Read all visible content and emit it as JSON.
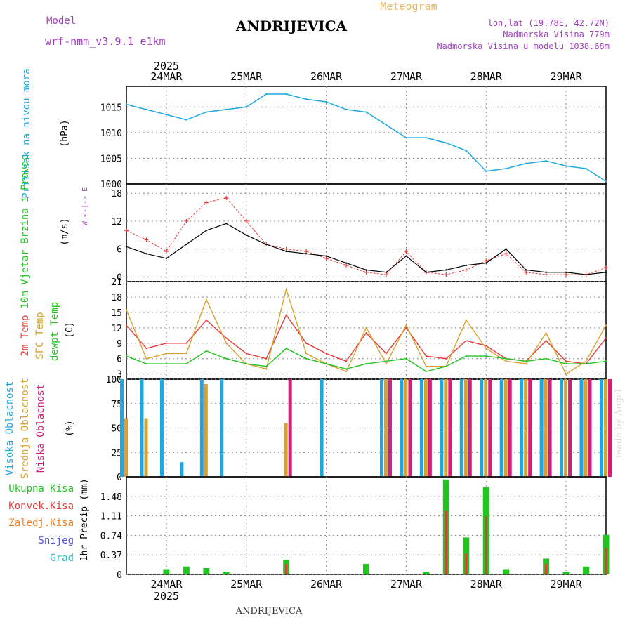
{
  "header": {
    "model_label": "Model",
    "model_name": "wrf-nmm_v3.9.1 e1km",
    "station": "ANDRIJEVICA",
    "title": "Meteogram",
    "lonlat": "lon,lat (19.78E, 42.72N)",
    "elevation": "Nadmorska Visina 779m",
    "model_elevation": "Nadmorska Visina u modelu 1038.68m",
    "year": "2025",
    "footer_station": "ANDRIJEVICA",
    "watermark": "made by Angel"
  },
  "colors": {
    "pressure": "#1fa8e0",
    "wind_speed": "#000000",
    "gust": "#e83a3a",
    "temp2m": "#e83a3a",
    "sfc_temp": "#d9a030",
    "dewpoint": "#22c422",
    "high_cloud": "#1fa8e0",
    "mid_cloud": "#d9a030",
    "low_cloud": "#d0207a",
    "total_precip": "#22c422",
    "convective": "#e83a3a",
    "frozen": "#f07f20",
    "snow": "#5050e0",
    "graupel": "#30c0c0",
    "model_label": "#a040c0"
  },
  "chart_data": [
    {
      "type": "line",
      "name": "pressure",
      "ylabel": "Pritisak na nivou mora",
      "unit": "(hPa)",
      "ylim": [
        1000,
        1019
      ],
      "yticks": [
        1000,
        1005,
        1010,
        1015
      ],
      "x": [
        "23MAR 12Z",
        "23MAR 18Z",
        "24MAR 00Z",
        "24MAR 06Z",
        "24MAR 12Z",
        "24MAR 18Z",
        "25MAR 00Z",
        "25MAR 06Z",
        "25MAR 12Z",
        "25MAR 18Z",
        "26MAR 00Z",
        "26MAR 06Z",
        "26MAR 12Z",
        "26MAR 18Z",
        "27MAR 00Z",
        "27MAR 06Z",
        "27MAR 12Z",
        "27MAR 18Z",
        "28MAR 00Z",
        "28MAR 06Z",
        "28MAR 12Z",
        "28MAR 18Z",
        "29MAR 00Z",
        "29MAR 06Z",
        "29MAR 12Z"
      ],
      "values": [
        1015.5,
        1014.5,
        1013.5,
        1012.5,
        1014,
        1014.5,
        1015,
        1017.5,
        1017.5,
        1016.5,
        1016,
        1014.5,
        1014,
        1011.5,
        1009,
        1009,
        1008,
        1006.5,
        1002.5,
        1003,
        1004,
        1004.5,
        1003.5,
        1003,
        1000.5
      ]
    },
    {
      "type": "line",
      "name": "wind",
      "ylabel": "10m Vjetar Brzina i Pravac",
      "unit": "(m/s)",
      "ylim": [
        -1,
        20
      ],
      "yticks": [
        0,
        6,
        12,
        18
      ],
      "compass": "W <-|-> E",
      "x": [
        "23MAR 12Z",
        "23MAR 18Z",
        "24MAR 00Z",
        "24MAR 06Z",
        "24MAR 12Z",
        "24MAR 18Z",
        "25MAR 00Z",
        "25MAR 06Z",
        "25MAR 12Z",
        "25MAR 18Z",
        "26MAR 00Z",
        "26MAR 06Z",
        "26MAR 12Z",
        "26MAR 18Z",
        "27MAR 00Z",
        "27MAR 06Z",
        "27MAR 12Z",
        "27MAR 18Z",
        "28MAR 00Z",
        "28MAR 06Z",
        "28MAR 12Z",
        "28MAR 18Z",
        "29MAR 00Z",
        "29MAR 06Z",
        "29MAR 12Z"
      ],
      "series": [
        {
          "name": "speed",
          "values": [
            6.5,
            5,
            4,
            7,
            10,
            11.5,
            9,
            7,
            5.5,
            5,
            4.5,
            3,
            1.5,
            1,
            4.5,
            1,
            1.5,
            2.5,
            3,
            6,
            1.5,
            1,
            1,
            0.5,
            1
          ]
        },
        {
          "name": "gust",
          "values": [
            10,
            8,
            5.5,
            12,
            16,
            17,
            12,
            7,
            6,
            5.5,
            4,
            2.5,
            1,
            0.5,
            5.5,
            1,
            0.5,
            1.5,
            3.5,
            5,
            1,
            0.5,
            0.5,
            0.5,
            2
          ]
        }
      ]
    },
    {
      "type": "line",
      "name": "temperature",
      "labels": [
        "2m Temp",
        "SFC Temp",
        "dewpt Temp"
      ],
      "unit": "(C)",
      "ylim": [
        2,
        21
      ],
      "yticks": [
        3,
        6,
        9,
        12,
        15,
        18,
        21
      ],
      "x": [
        "23MAR 12Z",
        "23MAR 18Z",
        "24MAR 00Z",
        "24MAR 06Z",
        "24MAR 12Z",
        "24MAR 18Z",
        "25MAR 00Z",
        "25MAR 06Z",
        "25MAR 12Z",
        "25MAR 18Z",
        "26MAR 00Z",
        "26MAR 06Z",
        "26MAR 12Z",
        "26MAR 18Z",
        "27MAR 00Z",
        "27MAR 06Z",
        "27MAR 12Z",
        "27MAR 18Z",
        "28MAR 00Z",
        "28MAR 06Z",
        "28MAR 12Z",
        "28MAR 18Z",
        "29MAR 00Z",
        "29MAR 06Z",
        "29MAR 12Z"
      ],
      "series": [
        {
          "name": "2m Temp",
          "values": [
            12.5,
            8,
            9,
            9,
            13.5,
            10,
            7,
            6,
            14.5,
            9,
            7,
            5.5,
            11,
            7,
            12,
            6.5,
            6,
            9.5,
            8.5,
            6,
            5.5,
            9.5,
            5.5,
            5,
            10
          ]
        },
        {
          "name": "SFC Temp",
          "values": [
            15.5,
            6,
            7,
            7,
            17.5,
            9,
            5,
            4,
            19.5,
            7,
            5,
            3.5,
            12,
            5,
            12.5,
            4.5,
            4.5,
            13.5,
            8,
            5.5,
            5,
            11,
            3,
            5.5,
            12.5
          ]
        },
        {
          "name": "dewpt Temp",
          "values": [
            6.5,
            5,
            5,
            5,
            7.5,
            6,
            5,
            4.5,
            8,
            6,
            5,
            4,
            5,
            5.5,
            6,
            3.5,
            4.5,
            6.5,
            6.5,
            6,
            5.5,
            6,
            5,
            5,
            5.5
          ]
        }
      ]
    },
    {
      "type": "bar",
      "name": "cloud",
      "labels": [
        "Visoka Oblacnost",
        "Srednja Oblacnost",
        "Niska Oblacnost"
      ],
      "unit": "(%)",
      "ylim": [
        0,
        100
      ],
      "yticks": [
        0,
        25,
        50,
        75,
        100
      ],
      "x": [
        "23MAR 12Z",
        "23MAR 18Z",
        "24MAR 00Z",
        "24MAR 06Z",
        "24MAR 12Z",
        "24MAR 18Z",
        "25MAR 00Z",
        "25MAR 06Z",
        "25MAR 12Z",
        "25MAR 18Z",
        "26MAR 00Z",
        "26MAR 06Z",
        "26MAR 12Z",
        "26MAR 18Z",
        "27MAR 00Z",
        "27MAR 06Z",
        "27MAR 12Z",
        "27MAR 18Z",
        "28MAR 00Z",
        "28MAR 06Z",
        "28MAR 12Z",
        "28MAR 18Z",
        "29MAR 00Z",
        "29MAR 06Z",
        "29MAR 12Z"
      ],
      "series": [
        {
          "name": "Visoka Oblacnost",
          "values": [
            100,
            100,
            100,
            15,
            100,
            100,
            0,
            0,
            0,
            0,
            100,
            0,
            0,
            100,
            100,
            100,
            100,
            100,
            100,
            100,
            100,
            100,
            100,
            100,
            100
          ]
        },
        {
          "name": "Srednja Oblacnost",
          "values": [
            60,
            60,
            0,
            0,
            95,
            0,
            0,
            0,
            55,
            0,
            0,
            0,
            0,
            100,
            100,
            100,
            100,
            100,
            100,
            100,
            100,
            100,
            100,
            100,
            100
          ]
        },
        {
          "name": "Niska Oblacnost",
          "values": [
            0,
            0,
            0,
            0,
            0,
            0,
            0,
            0,
            100,
            0,
            0,
            0,
            0,
            100,
            100,
            100,
            100,
            100,
            100,
            100,
            100,
            100,
            100,
            100,
            100
          ]
        }
      ]
    },
    {
      "type": "bar",
      "name": "precipitation",
      "labels": [
        "Ukupna Kisa",
        "Konvek.Kisa",
        "Zaledj.Kisa",
        "Snijeg",
        "Grad"
      ],
      "ylabel": "1hr Precip",
      "unit": "(mm)",
      "ylim": [
        0,
        1.85
      ],
      "yticks": [
        0,
        0.37,
        0.74,
        1.11,
        1.48
      ],
      "x": [
        "23MAR 12Z",
        "23MAR 18Z",
        "24MAR 00Z",
        "24MAR 06Z",
        "24MAR 12Z",
        "24MAR 18Z",
        "25MAR 00Z",
        "25MAR 06Z",
        "25MAR 12Z",
        "25MAR 18Z",
        "26MAR 00Z",
        "26MAR 06Z",
        "26MAR 12Z",
        "26MAR 18Z",
        "27MAR 00Z",
        "27MAR 06Z",
        "27MAR 12Z",
        "27MAR 18Z",
        "28MAR 00Z",
        "28MAR 06Z",
        "28MAR 12Z",
        "28MAR 18Z",
        "29MAR 00Z",
        "29MAR 06Z",
        "29MAR 12Z"
      ],
      "series": [
        {
          "name": "Ukupna Kisa",
          "values": [
            0,
            0,
            0.1,
            0.15,
            0.12,
            0.05,
            0,
            0,
            0.28,
            0,
            0,
            0,
            0.2,
            0,
            0,
            0.05,
            1.8,
            0.7,
            1.65,
            0.1,
            0,
            0.3,
            0.05,
            0.15,
            0.75
          ]
        },
        {
          "name": "Konvek.Kisa",
          "values": [
            0,
            0,
            0,
            0,
            0,
            0,
            0,
            0,
            0.2,
            0,
            0,
            0,
            0,
            0,
            0,
            0,
            1.2,
            0.4,
            1.1,
            0,
            0,
            0.2,
            0,
            0,
            0.5
          ]
        }
      ]
    }
  ],
  "x_axis": {
    "top_labels": [
      "24MAR",
      "25MAR",
      "26MAR",
      "27MAR",
      "28MAR",
      "29MAR"
    ],
    "bottom_labels": [
      "24MAR",
      "25MAR",
      "26MAR",
      "27MAR",
      "28MAR",
      "29MAR"
    ]
  }
}
